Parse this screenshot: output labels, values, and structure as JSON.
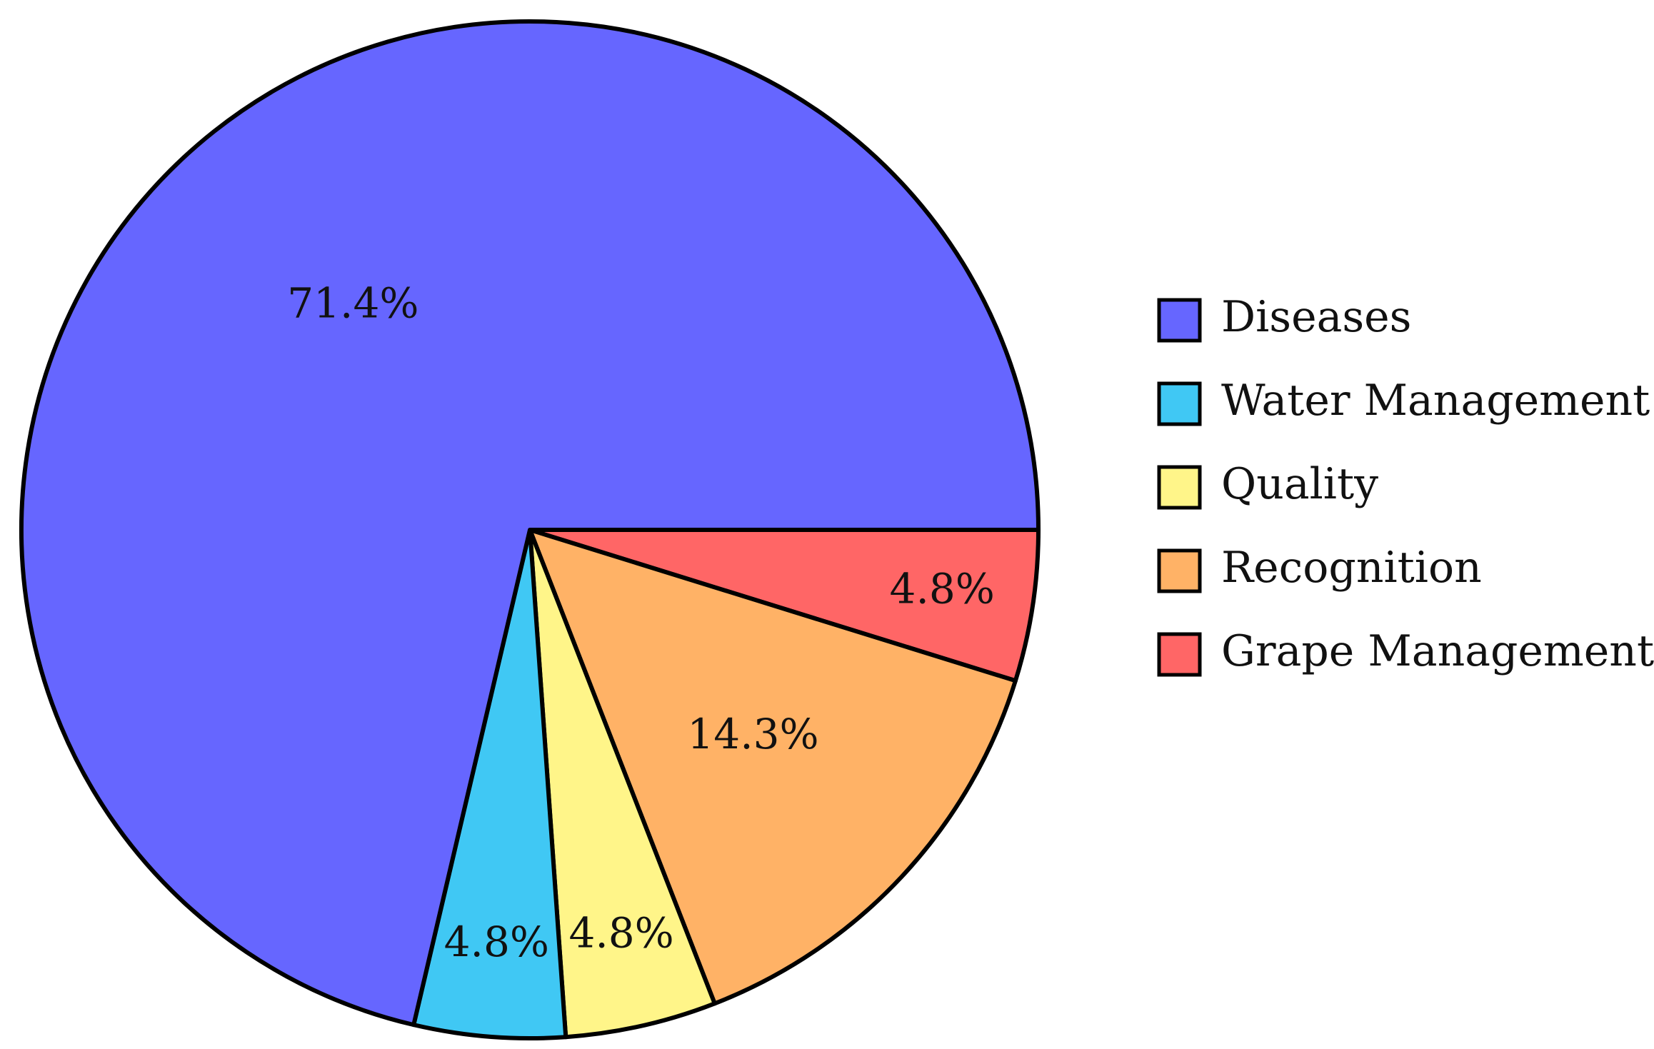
{
  "chart_data": {
    "type": "pie",
    "start_angle_deg": 0,
    "direction": "clockwise",
    "slices": [
      {
        "name": "Grape Management",
        "value": 4.8,
        "label": "4.8%",
        "color": "#FF6666"
      },
      {
        "name": "Recognition",
        "value": 14.3,
        "label": "14.3%",
        "color": "#FFB266"
      },
      {
        "name": "Quality",
        "value": 4.8,
        "label": "4.8%",
        "color": "#FFF589"
      },
      {
        "name": "Water Management",
        "value": 4.8,
        "label": "4.8%",
        "color": "#40C8F4"
      },
      {
        "name": "Diseases",
        "value": 71.4,
        "label": "71.4%",
        "color": "#6666FF"
      }
    ],
    "legend": {
      "placement": "right",
      "entries": [
        {
          "label": "Diseases",
          "color": "#6666FF"
        },
        {
          "label": "Water Management",
          "color": "#40C8F4"
        },
        {
          "label": "Quality",
          "color": "#FFF589"
        },
        {
          "label": "Recognition",
          "color": "#FFB266"
        },
        {
          "label": "Grape Management",
          "color": "#FF6666"
        }
      ]
    }
  }
}
